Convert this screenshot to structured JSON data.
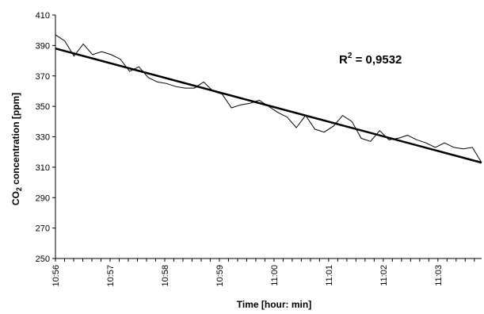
{
  "chart_data": {
    "type": "line",
    "xlabel": "Time [hour: min]",
    "ylabel_parts": {
      "pre": "CO",
      "sub": "2",
      "post": " concentration [ppm]"
    },
    "ylim": [
      250,
      410
    ],
    "yticks": [
      250,
      270,
      290,
      310,
      330,
      350,
      370,
      390,
      410
    ],
    "xlim_minutes": [
      0,
      7.8
    ],
    "xticks": [
      {
        "label": "10:56",
        "minute": 0
      },
      {
        "label": "10:57",
        "minute": 1
      },
      {
        "label": "10:58",
        "minute": 2
      },
      {
        "label": "10:59",
        "minute": 3
      },
      {
        "label": "11:00",
        "minute": 4
      },
      {
        "label": "11:01",
        "minute": 5
      },
      {
        "label": "11:02",
        "minute": 6
      },
      {
        "label": "11:03",
        "minute": 7
      }
    ],
    "series": [
      {
        "values": [
          397,
          393,
          383,
          391,
          384,
          386,
          384,
          381,
          373,
          376,
          369,
          366,
          365,
          363,
          362,
          362,
          366,
          360,
          358,
          349,
          351,
          352,
          354,
          350,
          346,
          343,
          336,
          344,
          335,
          333,
          337,
          344,
          340,
          329,
          327,
          334,
          328,
          329,
          331,
          328,
          326,
          323,
          326,
          323,
          322,
          323,
          313
        ]
      }
    ],
    "trendline": {
      "start": [
        0,
        388
      ],
      "end": [
        7.8,
        313
      ]
    },
    "annotation": {
      "pre": "R",
      "sup": "2",
      "post": " = 0,9532"
    }
  }
}
